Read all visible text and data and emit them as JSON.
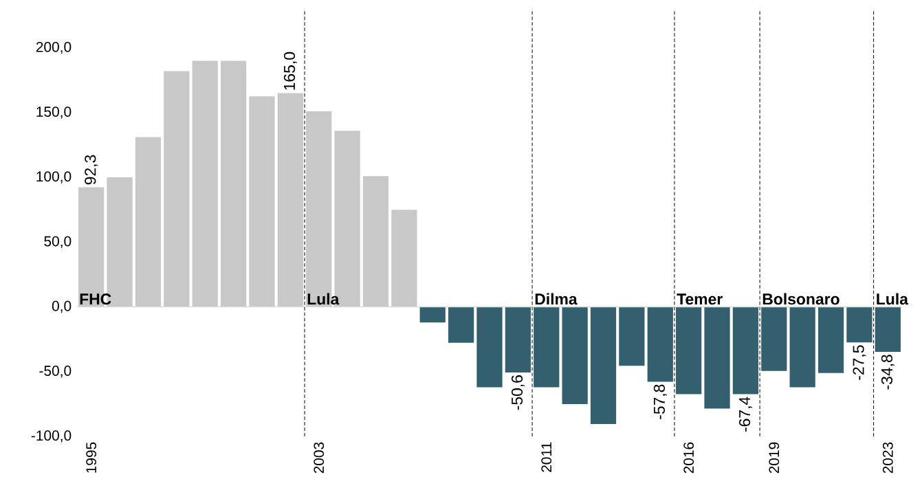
{
  "chart_data": {
    "type": "bar",
    "x": [
      1995,
      1996,
      1997,
      1998,
      1999,
      2000,
      2001,
      2002,
      2003,
      2004,
      2005,
      2006,
      2007,
      2008,
      2009,
      2010,
      2011,
      2012,
      2013,
      2014,
      2015,
      2016,
      2017,
      2018,
      2019,
      2020,
      2021,
      2022,
      2023
    ],
    "values": [
      92.3,
      100,
      131,
      182,
      190,
      190,
      162.5,
      165.0,
      151,
      136,
      101,
      75,
      -12,
      -27.7,
      -62,
      -50.6,
      -62,
      -75,
      -90.5,
      -45.5,
      -57.8,
      -67.4,
      -78.5,
      -67.4,
      -49.5,
      -62,
      -51,
      -27.5,
      -34.8
    ],
    "colors": [
      "#c8c8c8",
      "#c8c8c8",
      "#c8c8c8",
      "#c8c8c8",
      "#c8c8c8",
      "#c8c8c8",
      "#c8c8c8",
      "#c8c8c8",
      "#c8c8c8",
      "#c8c8c8",
      "#c8c8c8",
      "#c8c8c8",
      "#335f6f",
      "#335f6f",
      "#335f6f",
      "#335f6f",
      "#335f6f",
      "#335f6f",
      "#335f6f",
      "#335f6f",
      "#335f6f",
      "#335f6f",
      "#335f6f",
      "#335f6f",
      "#335f6f",
      "#335f6f",
      "#335f6f",
      "#335f6f",
      "#335f6f"
    ],
    "value_labels": [
      "92,3",
      null,
      null,
      null,
      null,
      null,
      null,
      "165,0",
      null,
      null,
      null,
      null,
      null,
      null,
      null,
      "-50,6",
      null,
      null,
      null,
      null,
      "-57,8",
      null,
      null,
      "-67,4",
      null,
      null,
      null,
      "-27,5",
      "-34,8"
    ],
    "xlim": [
      1994.5,
      2023.5
    ],
    "xticks": [
      1995,
      2003,
      2011,
      2016,
      2019,
      2023
    ],
    "ylim": [
      -100,
      230
    ],
    "yticks": [
      {
        "value": -100,
        "label": "-100,0"
      },
      {
        "value": -50,
        "label": "-50,0"
      },
      {
        "value": 0,
        "label": "0,0"
      },
      {
        "value": 50,
        "label": "50,0"
      },
      {
        "value": 100,
        "label": "100,0"
      },
      {
        "value": 150,
        "label": "150,0"
      },
      {
        "value": 200,
        "label": "200,0"
      }
    ],
    "ref_lines": [
      {
        "axis": "y",
        "value": 0,
        "color": "#d9d9d9",
        "line_style": "solid"
      },
      {
        "axis": "x",
        "value": 2002.5,
        "label": "Lula",
        "color": "#000000",
        "line_style": "dashed"
      },
      {
        "axis": "x",
        "value": 2010.5,
        "label": "Dilma",
        "color": "#000000",
        "line_style": "dashed"
      },
      {
        "axis": "x",
        "value": 2015.5,
        "label": "Temer",
        "color": "#000000",
        "line_style": "dashed"
      },
      {
        "axis": "x",
        "value": 2018.5,
        "label": "Bolsonaro",
        "color": "#000000",
        "line_style": "dashed"
      },
      {
        "axis": "x",
        "value": 2022.5,
        "label": "Lula",
        "color": "#000000",
        "line_style": "dashed"
      }
    ],
    "annotations": [
      {
        "text": "FHC",
        "x": 1995,
        "y": 0
      }
    ]
  }
}
